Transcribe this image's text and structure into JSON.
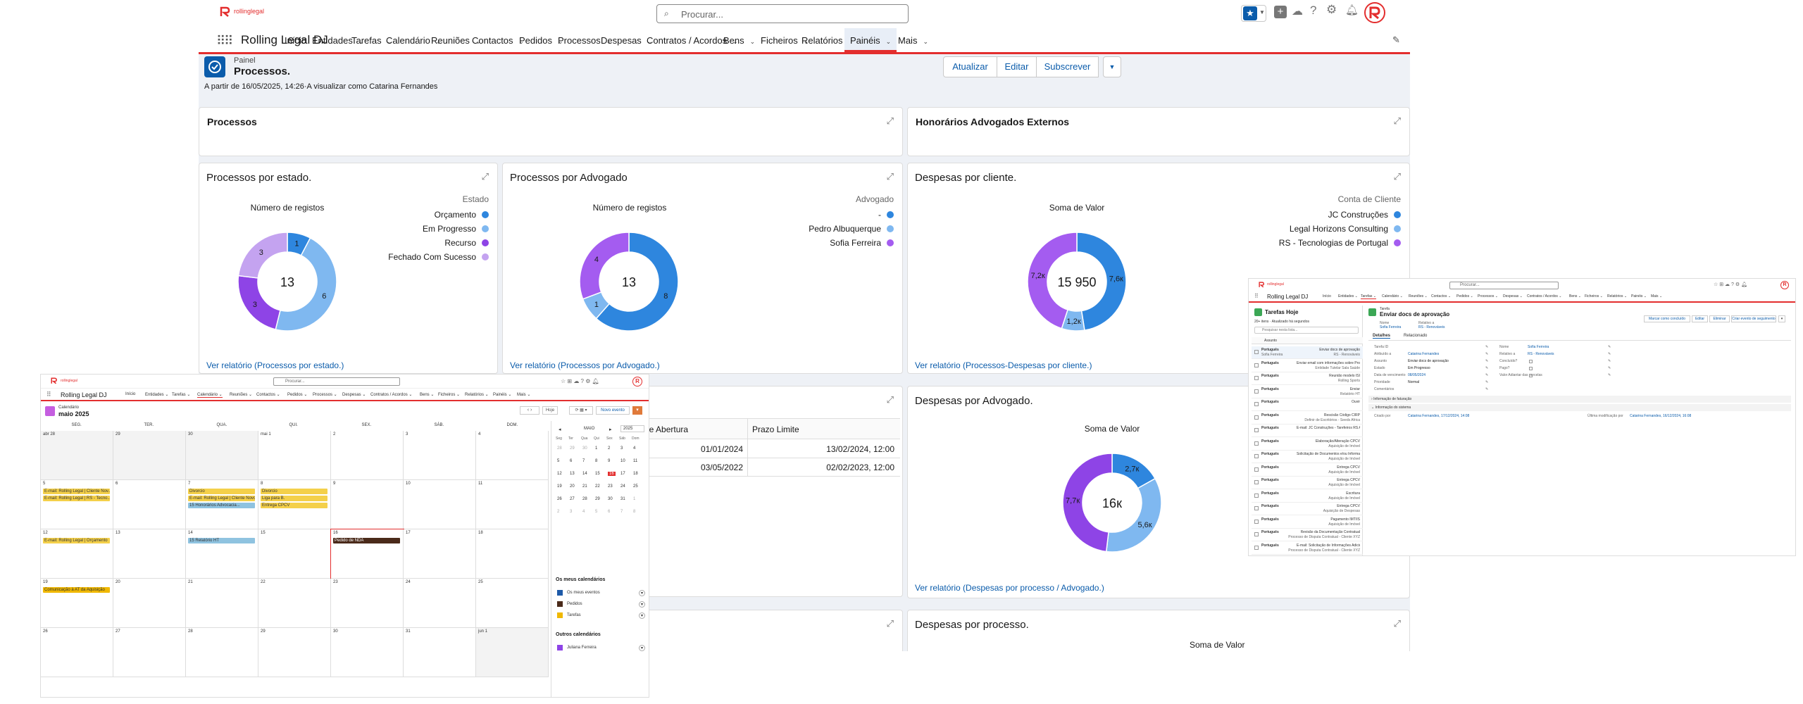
{
  "header": {
    "logo_text": "rollinglegal",
    "search_placeholder": "Procurar...",
    "app_name": "Rolling Legal DJ"
  },
  "nav": [
    {
      "label": "Início",
      "dropdown": false
    },
    {
      "label": "Entidades",
      "dropdown": true
    },
    {
      "label": "Tarefas",
      "dropdown": true
    },
    {
      "label": "Calendário",
      "dropdown": true
    },
    {
      "label": "Reuniões",
      "dropdown": true
    },
    {
      "label": "Contactos",
      "dropdown": true
    },
    {
      "label": "Pedidos",
      "dropdown": true
    },
    {
      "label": "Processos",
      "dropdown": true
    },
    {
      "label": "Despesas",
      "dropdown": true
    },
    {
      "label": "Contratos / Acordos",
      "dropdown": true
    },
    {
      "label": "Bens",
      "dropdown": true
    },
    {
      "label": "Ficheiros",
      "dropdown": true
    },
    {
      "label": "Relatórios",
      "dropdown": true
    },
    {
      "label": "Painéis",
      "dropdown": true,
      "active": true
    },
    {
      "label": "Mais",
      "dropdown": true
    }
  ],
  "page": {
    "object_label": "Painel",
    "title": "Processos.",
    "subtitle": "A partir de 16/05/2025, 14:26·A visualizar como Catarina Fernandes",
    "buttons": [
      "Atualizar",
      "Editar",
      "Subscrever"
    ]
  },
  "sections": {
    "left": "Processos",
    "right": "Honorários Advogados Externos"
  },
  "charts": [
    {
      "title": "Processos por estado.",
      "metric_label": "Número de registos",
      "center_value": "13",
      "legend_title": "Estado",
      "link": "Ver relatório (Processos por estado.)",
      "slice_labels": [
        "1",
        "6",
        "3",
        "3"
      ]
    },
    {
      "title": "Processos por Advogado",
      "metric_label": "Número de registos",
      "center_value": "13",
      "legend_title": "Advogado",
      "link": "Ver relatório (Processos por Advogado.)",
      "slice_labels": [
        "8",
        "1",
        "4"
      ]
    },
    {
      "title": "Despesas por cliente.",
      "metric_label": "Soma de Valor",
      "center_value": "15 950",
      "legend_title": "Conta de Cliente",
      "link": "Ver relatório (Processos-Despesas por cliente.)",
      "slice_labels": [
        "7,6к",
        "1,2к",
        "7,2к"
      ]
    },
    {
      "title": "Despesas por Advogado.",
      "metric_label": "Soma de Valor",
      "center_value": "16к",
      "link": "Ver relatório (Despesas por processo / Advogado.)",
      "slice_labels": [
        "2,7к",
        "5,6к",
        "7,7к"
      ]
    }
  ],
  "chart_data": [
    {
      "type": "pie",
      "title": "Processos por estado.",
      "metric": "Número de registos",
      "total": 13,
      "categories": [
        "Orçamento",
        "Em Progresso",
        "Recurso",
        "Fechado Com Sucesso"
      ],
      "values": [
        1,
        6,
        3,
        3
      ],
      "colors": [
        "#2e86de",
        "#7fb8f0",
        "#8e44e6",
        "#c4a3f0"
      ],
      "legend_title": "Estado",
      "legend": "right"
    },
    {
      "type": "pie",
      "title": "Processos por Advogado",
      "metric": "Número de registos",
      "total": 13,
      "categories": [
        "-",
        "Pedro Albuquerque",
        "Sofia Ferreira"
      ],
      "values": [
        8,
        1,
        4
      ],
      "colors": [
        "#2e86de",
        "#7fb8f0",
        "#a45cf0"
      ],
      "legend_title": "Advogado",
      "legend": "right"
    },
    {
      "type": "pie",
      "title": "Despesas por cliente.",
      "metric": "Soma de Valor",
      "total": 15950,
      "categories": [
        "JC Construções",
        "Legal Horizons Consulting",
        "RS - Tecnologias de Portugal"
      ],
      "values": [
        7600,
        1200,
        7200
      ],
      "colors": [
        "#2e86de",
        "#7fb8f0",
        "#a45cf0"
      ],
      "legend_title": "Conta de Cliente",
      "legend": "right"
    },
    {
      "type": "pie",
      "title": "Despesas por Advogado.",
      "metric": "Soma de Valor",
      "total": 16000,
      "values": [
        2700,
        5600,
        7700
      ],
      "colors": [
        "#2e86de",
        "#7fb8f0",
        "#8e44e6"
      ]
    }
  ],
  "table": {
    "headers": [
      "a de Abertura",
      "Prazo Limite"
    ],
    "rows": [
      [
        "01/01/2024",
        "13/02/2024, 12:00"
      ],
      [
        "03/05/2022",
        "02/02/2023, 12:00"
      ]
    ]
  },
  "bottom_card": {
    "title": "Despesas por processo.",
    "metric": "Soma de Valor"
  },
  "calendar": {
    "object_label": "Calendário",
    "month_title": "maio 2025",
    "weekdays": [
      "SEG.",
      "TER.",
      "QUA.",
      "QUI.",
      "SEX.",
      "SÁB.",
      "DOM."
    ],
    "day_numbers": [
      "abr 28",
      "29",
      "30",
      "mai 1",
      "2",
      "3",
      "4",
      "5",
      "6",
      "7",
      "8",
      "9",
      "10",
      "11",
      "12",
      "13",
      "14",
      "15",
      "16",
      "17",
      "18",
      "19",
      "20",
      "21",
      "22",
      "23",
      "24",
      "25",
      "26",
      "27",
      "28",
      "29",
      "30",
      "31",
      "jun 1"
    ],
    "events": [
      {
        "day": 7,
        "text": "E-mail: Rolling Legal | Cliente Nov..."
      },
      {
        "day": 7,
        "text": "E-mail: Rolling Legal | RS - Tecno..."
      },
      {
        "day": 9,
        "text": "Divorcio"
      },
      {
        "day": 9,
        "text": "E-mail: Rolling Legal | Cliente Novo"
      },
      {
        "day": 9,
        "text": "15 Honorários Advocacia..."
      },
      {
        "day": 10,
        "text": "Divorcio"
      },
      {
        "day": 10,
        "text": "Liga para B."
      },
      {
        "day": 10,
        "text": "Entrega CPCV"
      },
      {
        "day": 14,
        "text": "E-mail: Rolling Legal | Orçamento"
      },
      {
        "day": 16,
        "text": "15 Relatório HT"
      },
      {
        "day": 18,
        "text": "Pedido de NDA"
      },
      {
        "day": 21,
        "text": "Comunicação à AT da Aquisição"
      }
    ],
    "mini": {
      "month": "MAIO",
      "year": "2025",
      "weekdays": [
        "Seg",
        "Ter",
        "Qua",
        "Qui",
        "Sex",
        "Sáb",
        "Dom"
      ],
      "days": [
        "28",
        "29",
        "30",
        "1",
        "2",
        "3",
        "4",
        "5",
        "6",
        "7",
        "8",
        "9",
        "10",
        "11",
        "12",
        "13",
        "14",
        "15",
        "16",
        "17",
        "18",
        "19",
        "20",
        "21",
        "22",
        "23",
        "24",
        "25",
        "26",
        "27",
        "28",
        "29",
        "30",
        "31",
        "1",
        "2",
        "3",
        "4",
        "5",
        "6",
        "7",
        "8"
      ]
    },
    "my_calendars_title": "Os meus calendários",
    "my_calendars": [
      "Os meus eventos",
      "Pedidos",
      "Tarefas"
    ],
    "other_calendars_title": "Outros calendários",
    "other_calendars": [
      "Juliana Ferreira"
    ],
    "buttons": {
      "today": "Hoje",
      "new_event": "Novo evento"
    }
  },
  "tasks": {
    "list_title": "Tarefas Hoje",
    "list_meta": "20+ itens · Atualizado há segundos",
    "search_placeholder": "Pesquisar nesta lista...",
    "column_header": "Assunto",
    "items": [
      {
        "owner": "Português",
        "subject": "Enviar docs de aprovação",
        "sub": "RS - Renováveis",
        "who": "Sofia Ferreira"
      },
      {
        "owner": "Português",
        "subject": "Enviar email com informações sobre Procedimento",
        "sub": "Entidade Tutelar Sala Saúde"
      },
      {
        "owner": "Português",
        "subject": "Reunião modelo ISI",
        "sub": "Rolling Sports"
      },
      {
        "owner": "Português",
        "subject": "Enviar",
        "sub": "Relatório HT"
      },
      {
        "owner": "Português",
        "subject": "Ouvir",
        "sub": ""
      },
      {
        "owner": "Português",
        "subject": "Rescisão Código CIRP",
        "sub": "Definir de Escritórios - Seeds Africa"
      },
      {
        "owner": "Português",
        "subject": "E-mail: JC Construções - Tarefeiros RS Aquisição",
        "sub": ""
      },
      {
        "owner": "Português",
        "subject": "Elaboração/Alteração CPCV",
        "sub": "Aquisição de Imóvel"
      },
      {
        "owner": "Português",
        "subject": "Solicitação de Documentos e/ou Informações para Procuração",
        "sub": "Aquisição de Imóvel"
      },
      {
        "owner": "Português",
        "subject": "Entrega CPCV",
        "sub": "Aquisição de Imóvel"
      },
      {
        "owner": "Português",
        "subject": "Entrega CPCV",
        "sub": "Aquisição de Imóvel"
      },
      {
        "owner": "Português",
        "subject": "Escritura",
        "sub": "Aquisição de Imóvel"
      },
      {
        "owner": "Português",
        "subject": "Entrega CPCV",
        "sub": "Aquisição de Despesas"
      },
      {
        "owner": "Português",
        "subject": "Pagamento IMT/IS",
        "sub": "Aquisição de Imóvel"
      },
      {
        "owner": "Português",
        "subject": "Revisão da Documentação Contratual",
        "sub": "Processo de Disputa Contratual - Cliente XYZ"
      },
      {
        "owner": "Português",
        "subject": "E-mail: Solicitação de Informações Adicionais ao Cliente XYZ",
        "sub": "Processo de Disputa Contratual - Cliente XYZ"
      }
    ],
    "detail": {
      "object_label": "Tarefa",
      "title": "Enviar docs de aprovação",
      "header_fields": [
        {
          "label": "Nome",
          "value": "Sofia Ferreira"
        },
        {
          "label": "Relativo a",
          "value": "RS - Renováveis"
        }
      ],
      "buttons": [
        "Marcar como concluído",
        "Editar",
        "Eliminar",
        "Criar evento de seguimento"
      ],
      "tabs": [
        "Detalhes",
        "Relacionado"
      ],
      "left_fields": [
        {
          "label": "Tarefa ID",
          "value": ""
        },
        {
          "label": "Atribuído a",
          "value": "Catarina Fernandes"
        },
        {
          "label": "Assunto",
          "value": "Enviar docs de aprovação"
        },
        {
          "label": "Estado",
          "value": "Em Progresso"
        },
        {
          "label": "Data de vencimento",
          "value": "08/05/2024"
        },
        {
          "label": "Prioridade",
          "value": "Normal"
        },
        {
          "label": "Comentários",
          "value": ""
        }
      ],
      "right_fields": [
        {
          "label": "Nome",
          "value": "Sofia Ferreira"
        },
        {
          "label": "Relativo a",
          "value": "RS - Renováveis"
        },
        {
          "label": "Concluído?",
          "value": ""
        },
        {
          "label": "Pago?",
          "value": ""
        },
        {
          "label": "Valor Adiantar das parcelas",
          "value": ""
        }
      ],
      "sections": [
        "Informação de faturação",
        "Informação do sistema"
      ],
      "created_label": "Criado por",
      "created_value": "Catarina Fernandes, 17/12/2024, 14:08",
      "modified_label": "Última modificação por",
      "modified_value": "Catarina Fernandes, 16/12/2024, 16:08"
    }
  }
}
